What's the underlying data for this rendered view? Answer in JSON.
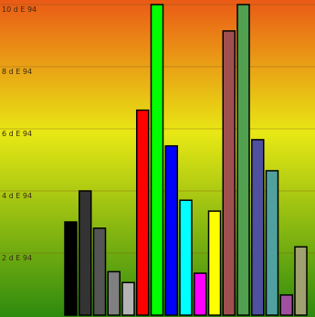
{
  "chart_data": {
    "type": "bar",
    "title": "",
    "xlabel": "",
    "ylabel": "",
    "ylim": [
      0,
      10
    ],
    "yticks": [
      {
        "value": 2,
        "label": "2 d E 94"
      },
      {
        "value": 4,
        "label": "4 d E 94"
      },
      {
        "value": 6,
        "label": "6 d E 94"
      },
      {
        "value": 8,
        "label": "8 d E 94"
      },
      {
        "value": 10,
        "label": "10 d E 94"
      }
    ],
    "grid": true,
    "legend": "none",
    "background_gradient": [
      "#ea5a16",
      "#e8e814",
      "#2e8a0e"
    ],
    "bars": [
      {
        "value": 3.0,
        "color": "#000000"
      },
      {
        "value": 4.0,
        "color": "#333333"
      },
      {
        "value": 2.8,
        "color": "#555555"
      },
      {
        "value": 1.4,
        "color": "#808080"
      },
      {
        "value": 1.05,
        "color": "#b4b4b4"
      },
      {
        "value": 6.6,
        "color": "#ff0000"
      },
      {
        "value": 10.0,
        "color": "#00ff00"
      },
      {
        "value": 5.45,
        "color": "#0000ff"
      },
      {
        "value": 3.7,
        "color": "#00ffff"
      },
      {
        "value": 1.35,
        "color": "#ff00ff"
      },
      {
        "value": 3.35,
        "color": "#ffff00"
      },
      {
        "value": 9.15,
        "color": "#a05050"
      },
      {
        "value": 10.0,
        "color": "#50a050"
      },
      {
        "value": 5.65,
        "color": "#5050a0"
      },
      {
        "value": 4.65,
        "color": "#50a0a0"
      },
      {
        "value": 0.65,
        "color": "#a050a0"
      },
      {
        "value": 2.2,
        "color": "#a0a070"
      }
    ]
  }
}
